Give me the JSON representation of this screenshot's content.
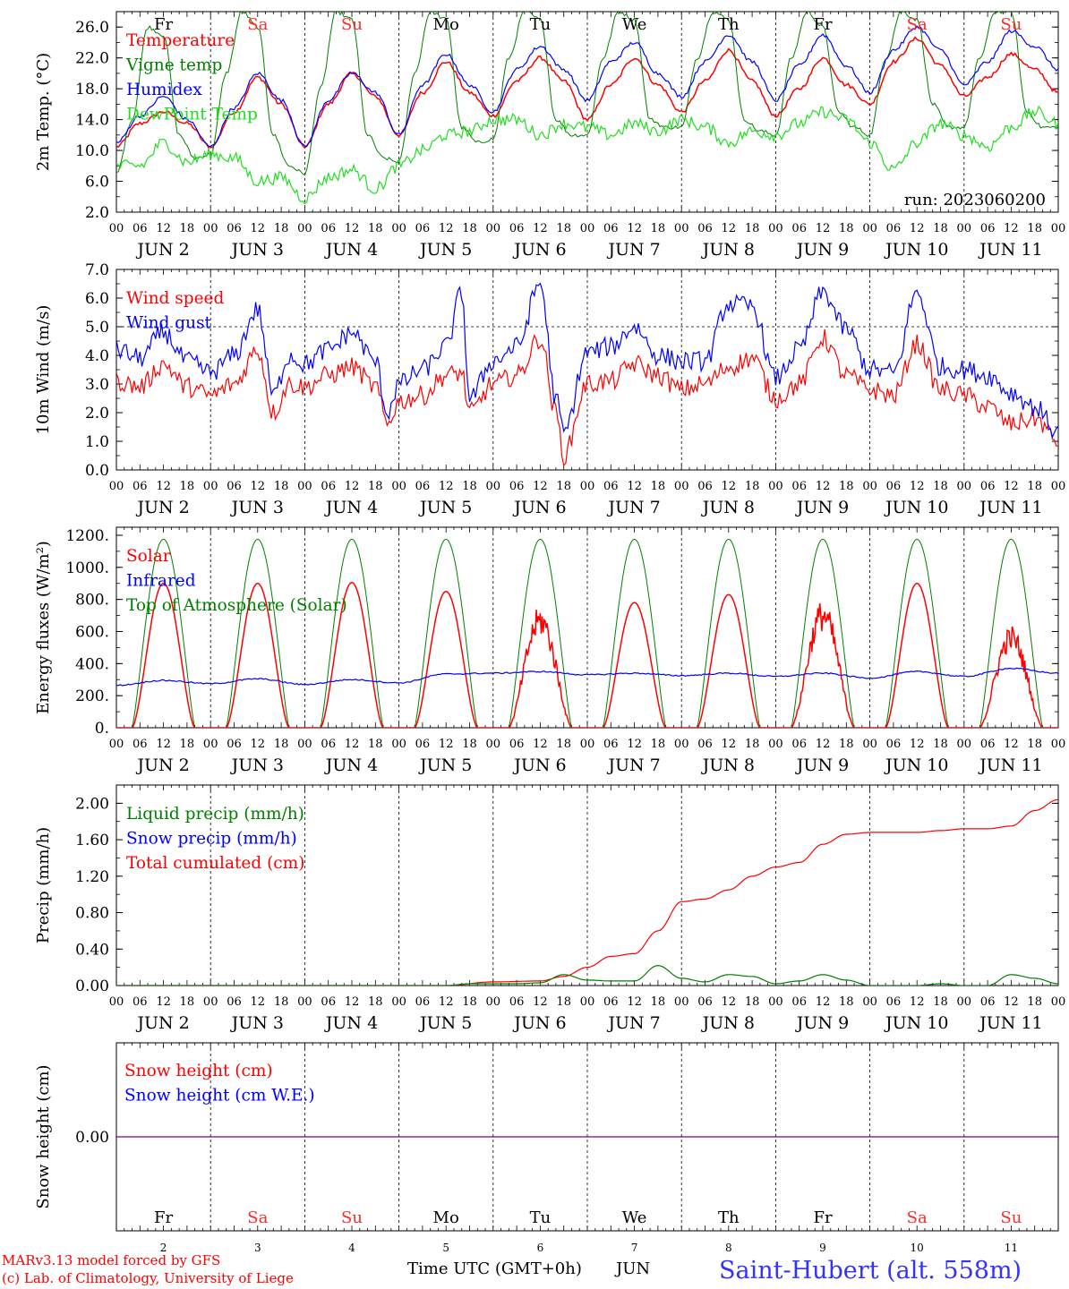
{
  "run_label": "run: 2023060200",
  "weekdays": [
    {
      "label": "Fr",
      "color": "#000000"
    },
    {
      "label": "Sa",
      "color": "#ff2a2a"
    },
    {
      "label": "Su",
      "color": "#ff2a2a"
    },
    {
      "label": "Mo",
      "color": "#000000"
    },
    {
      "label": "Tu",
      "color": "#000000"
    },
    {
      "label": "We",
      "color": "#000000"
    },
    {
      "label": "Th",
      "color": "#000000"
    },
    {
      "label": "Fr",
      "color": "#000000"
    },
    {
      "label": "Sa",
      "color": "#ff2a2a"
    },
    {
      "label": "Su",
      "color": "#ff2a2a"
    }
  ],
  "day_labels": [
    "JUN  2",
    "JUN  3",
    "JUN  4",
    "JUN  5",
    "JUN  6",
    "JUN  7",
    "JUN  8",
    "JUN  9",
    "JUN 10",
    "JUN 11"
  ],
  "hour_ticks": [
    "00",
    "06",
    "12",
    "18"
  ],
  "hour_tick_last": "00",
  "bottom_day_numbers": [
    "2",
    "3",
    "4",
    "5",
    "6",
    "7",
    "8",
    "9",
    "10",
    "11"
  ],
  "footer": {
    "model_line1": "MARv3.13 model forced by GFS",
    "model_line2": "(c) Lab. of Climatology, University of Liege",
    "time_label": "Time UTC (GMT+0h)",
    "month_label": "JUN",
    "station": "Saint-Hubert (alt. 558m)"
  },
  "colors": {
    "red": "#ff0000",
    "blue": "#0000ff",
    "green": "#008000",
    "lightgreen": "#22dd22",
    "purple": "#800080"
  },
  "chart_data": [
    {
      "type": "line",
      "ylabel": "2m Temp. (°C)",
      "ylim": [
        2,
        28
      ],
      "yticks": [
        "2.0",
        "6.0",
        "10.0",
        "14.0",
        "18.0",
        "22.0",
        "26.0"
      ],
      "ytick_values": [
        2,
        6,
        10,
        14,
        18,
        22,
        26
      ],
      "x_unit": "hours since Jun 2 00 UTC",
      "xlim": [
        0,
        240
      ],
      "legend": [
        {
          "name": "Temperature",
          "color": "#ff0000"
        },
        {
          "name": "Vigne temp",
          "color": "#008000"
        },
        {
          "name": "Humidex",
          "color": "#0000ff"
        },
        {
          "name": "DewPoint Temp",
          "color": "#22dd22"
        }
      ],
      "series": [
        {
          "name": "Temperature",
          "color": "#ff0000",
          "x": [
            0,
            6,
            12,
            18,
            24,
            30,
            36,
            42,
            48,
            54,
            60,
            66,
            72,
            78,
            84,
            90,
            96,
            102,
            108,
            114,
            120,
            126,
            132,
            138,
            144,
            150,
            156,
            162,
            168,
            174,
            180,
            186,
            192,
            198,
            204,
            210,
            216,
            222,
            228,
            234,
            240
          ],
          "y": [
            10.5,
            13.5,
            15.0,
            13.5,
            10.5,
            15.0,
            19.5,
            16.0,
            10.5,
            16.0,
            20.0,
            17.0,
            12.0,
            17.5,
            21.5,
            17.5,
            14.5,
            19.0,
            22.0,
            19.0,
            14.0,
            18.5,
            22.0,
            18.5,
            15.0,
            19.0,
            23.0,
            19.0,
            14.5,
            18.0,
            22.0,
            18.5,
            16.0,
            21.5,
            24.5,
            21.0,
            17.0,
            19.5,
            22.5,
            20.5,
            17.5
          ]
        },
        {
          "name": "Vigne temp",
          "color": "#008000",
          "x": [
            0,
            4,
            8,
            12,
            16,
            20,
            24,
            28,
            32,
            36,
            40,
            44,
            48,
            52,
            56,
            60,
            64,
            68,
            72,
            76,
            80,
            84,
            88,
            92,
            96,
            100,
            104,
            108,
            112,
            116,
            120,
            124,
            128,
            132,
            136,
            140,
            144,
            148,
            152,
            156,
            160,
            164,
            168,
            172,
            176,
            180,
            184,
            188,
            192,
            196,
            200,
            204,
            208,
            212,
            216,
            220,
            224,
            228,
            232,
            236,
            240
          ],
          "y": [
            7.0,
            14.0,
            26.0,
            25.0,
            12.0,
            9.0,
            9.5,
            20.0,
            28.0,
            26.0,
            12.0,
            8.0,
            7.0,
            18.0,
            28.0,
            27.0,
            12.0,
            9.0,
            8.5,
            20.0,
            28.0,
            27.0,
            13.0,
            11.0,
            11.5,
            22.0,
            28.0,
            27.0,
            14.0,
            12.0,
            12.0,
            22.0,
            28.0,
            27.0,
            14.0,
            13.0,
            13.0,
            22.0,
            28.0,
            27.0,
            14.0,
            12.5,
            12.0,
            22.0,
            28.0,
            26.0,
            15.0,
            13.0,
            12.0,
            22.0,
            28.0,
            27.0,
            16.0,
            13.0,
            13.0,
            22.0,
            28.0,
            28.0,
            15.0,
            13.0,
            13.0
          ]
        },
        {
          "name": "Humidex",
          "color": "#0000ff",
          "x": [
            0,
            6,
            12,
            18,
            24,
            30,
            36,
            42,
            48,
            54,
            60,
            66,
            72,
            78,
            84,
            90,
            96,
            102,
            108,
            114,
            120,
            126,
            132,
            138,
            144,
            150,
            156,
            162,
            168,
            174,
            180,
            186,
            192,
            198,
            204,
            210,
            216,
            222,
            228,
            234,
            240
          ],
          "y": [
            11.0,
            14.5,
            17.0,
            14.0,
            10.5,
            15.5,
            20.0,
            16.5,
            10.5,
            16.5,
            20.0,
            17.5,
            12.0,
            18.5,
            22.5,
            18.5,
            15.0,
            20.5,
            23.5,
            20.5,
            16.5,
            21.5,
            24.0,
            20.0,
            17.0,
            21.5,
            25.0,
            21.5,
            16.5,
            21.0,
            25.0,
            21.0,
            17.5,
            23.0,
            26.0,
            23.0,
            18.5,
            21.5,
            25.5,
            23.5,
            20.5
          ]
        },
        {
          "name": "DewPoint Temp",
          "color": "#22dd22",
          "x": [
            0,
            6,
            12,
            18,
            24,
            30,
            36,
            42,
            48,
            54,
            60,
            66,
            72,
            78,
            84,
            90,
            96,
            102,
            108,
            114,
            120,
            126,
            132,
            138,
            144,
            150,
            156,
            162,
            168,
            174,
            180,
            186,
            192,
            198,
            204,
            210,
            216,
            222,
            228,
            234,
            240
          ],
          "y": [
            8.0,
            8.0,
            11.0,
            8.5,
            9.5,
            9.0,
            6.0,
            6.5,
            3.8,
            6.5,
            7.5,
            5.0,
            8.0,
            10.0,
            12.0,
            12.5,
            14.0,
            14.0,
            12.0,
            13.5,
            13.0,
            12.0,
            13.5,
            12.5,
            14.0,
            13.0,
            11.0,
            12.5,
            12.0,
            13.5,
            15.0,
            14.0,
            11.0,
            7.5,
            11.0,
            13.5,
            12.0,
            10.5,
            13.0,
            15.0,
            13.5
          ]
        }
      ]
    },
    {
      "type": "line",
      "ylabel": "10m Wind (m/s)",
      "ylim": [
        0,
        7
      ],
      "yticks": [
        "0.0",
        "1.0",
        "2.0",
        "3.0",
        "4.0",
        "5.0",
        "6.0",
        "7.0"
      ],
      "ytick_values": [
        0,
        1,
        2,
        3,
        4,
        5,
        6,
        7
      ],
      "reference_line": 5.0,
      "xlim": [
        0,
        240
      ],
      "legend": [
        {
          "name": "Wind speed",
          "color": "#ff0000"
        },
        {
          "name": "Wind gust",
          "color": "#0000ff"
        }
      ],
      "series": [
        {
          "name": "Wind speed",
          "color": "#ff0000",
          "x": [
            0,
            6,
            12,
            18,
            24,
            30,
            36,
            40,
            44,
            48,
            54,
            60,
            66,
            69,
            72,
            78,
            84,
            88,
            90,
            96,
            102,
            108,
            112,
            114,
            120,
            126,
            132,
            138,
            144,
            150,
            156,
            162,
            168,
            174,
            180,
            186,
            192,
            198,
            204,
            210,
            216,
            222,
            228,
            234,
            240
          ],
          "y": [
            3.1,
            2.9,
            3.7,
            2.9,
            2.6,
            3.0,
            4.2,
            2.0,
            3.0,
            2.9,
            3.3,
            3.6,
            2.9,
            1.6,
            2.4,
            2.6,
            3.3,
            3.4,
            2.0,
            3.0,
            3.3,
            4.6,
            2.0,
            0.5,
            3.0,
            3.1,
            3.7,
            3.3,
            2.8,
            3.0,
            3.6,
            3.9,
            2.5,
            3.0,
            4.6,
            3.3,
            2.8,
            2.6,
            4.4,
            2.8,
            2.6,
            2.2,
            1.6,
            1.8,
            1.0
          ]
        },
        {
          "name": "Wind gust",
          "color": "#0000ff",
          "x": [
            0,
            6,
            12,
            18,
            24,
            30,
            36,
            40,
            44,
            48,
            54,
            60,
            66,
            69,
            72,
            78,
            84,
            88,
            90,
            96,
            102,
            108,
            112,
            114,
            120,
            126,
            132,
            138,
            144,
            150,
            156,
            162,
            168,
            174,
            180,
            186,
            192,
            198,
            204,
            210,
            216,
            222,
            228,
            234,
            240
          ],
          "y": [
            4.2,
            3.9,
            4.8,
            3.8,
            3.4,
            4.0,
            5.6,
            2.6,
            4.0,
            3.7,
            4.2,
            4.8,
            3.8,
            2.0,
            3.0,
            3.5,
            4.3,
            6.2,
            2.5,
            3.8,
            4.3,
            6.5,
            2.5,
            1.3,
            4.1,
            4.3,
            5.0,
            4.0,
            3.8,
            3.8,
            5.8,
            5.7,
            3.2,
            4.2,
            6.2,
            4.9,
            3.5,
            3.4,
            6.2,
            3.6,
            3.5,
            3.3,
            2.7,
            2.2,
            1.3
          ]
        }
      ]
    },
    {
      "type": "line",
      "ylabel": "Energy fluxes (W/m²)",
      "ylim": [
        0,
        1250
      ],
      "yticks": [
        "0.",
        "200.",
        "400.",
        "600.",
        "800.",
        "1000.",
        "1200."
      ],
      "ytick_values": [
        0,
        200,
        400,
        600,
        800,
        1000,
        1200
      ],
      "xlim": [
        0,
        240
      ],
      "legend": [
        {
          "name": "Solar",
          "color": "#ff0000"
        },
        {
          "name": "Infrared",
          "color": "#0000ff"
        },
        {
          "name": "Top of Atmosphere (Solar)",
          "color": "#008000"
        }
      ],
      "daily_peaks": {
        "top_of_atmosphere": [
          1175,
          1175,
          1175,
          1175,
          1175,
          1175,
          1175,
          1175,
          1175,
          1175
        ],
        "solar": [
          900,
          900,
          905,
          850,
          760,
          780,
          830,
          800,
          900,
          640
        ]
      },
      "series": [
        {
          "name": "Infrared",
          "color": "#0000ff",
          "x": [
            0,
            12,
            24,
            36,
            48,
            60,
            72,
            84,
            96,
            108,
            120,
            132,
            144,
            156,
            168,
            180,
            192,
            204,
            216,
            228,
            240
          ],
          "y": [
            265,
            295,
            275,
            305,
            270,
            300,
            280,
            335,
            340,
            350,
            330,
            340,
            325,
            340,
            320,
            340,
            310,
            350,
            320,
            370,
            340
          ]
        }
      ]
    },
    {
      "type": "line",
      "ylabel": "Precip (mm/h)",
      "ylim": [
        0,
        2.2
      ],
      "yticks": [
        "0.00",
        "0.40",
        "0.80",
        "1.20",
        "1.60",
        "2.00"
      ],
      "ytick_values": [
        0,
        0.4,
        0.8,
        1.2,
        1.6,
        2.0
      ],
      "xlim": [
        0,
        240
      ],
      "legend": [
        {
          "name": "Liquid precip (mm/h)",
          "color": "#008000"
        },
        {
          "name": "Snow precip (mm/h)",
          "color": "#0000ff"
        },
        {
          "name": "Total cumulated (cm)",
          "color": "#ff0000"
        }
      ],
      "series": [
        {
          "name": "Total cumulated (cm)",
          "color": "#ff0000",
          "x": [
            0,
            84,
            96,
            108,
            114,
            120,
            126,
            132,
            138,
            144,
            150,
            156,
            162,
            168,
            174,
            180,
            186,
            192,
            198,
            204,
            210,
            216,
            222,
            228,
            234,
            240
          ],
          "y": [
            0,
            0,
            0.04,
            0.05,
            0.1,
            0.2,
            0.32,
            0.35,
            0.6,
            0.92,
            0.95,
            1.05,
            1.2,
            1.3,
            1.35,
            1.55,
            1.66,
            1.68,
            1.68,
            1.68,
            1.7,
            1.72,
            1.72,
            1.75,
            1.92,
            2.04
          ]
        },
        {
          "name": "Liquid precip (mm/h)",
          "color": "#008000",
          "x": [
            0,
            84,
            90,
            96,
            102,
            108,
            114,
            120,
            126,
            132,
            138,
            144,
            150,
            156,
            162,
            168,
            174,
            180,
            186,
            192,
            198,
            204,
            210,
            216,
            222,
            228,
            234,
            240
          ],
          "y": [
            0,
            0,
            0.02,
            0.02,
            0.02,
            0.03,
            0.12,
            0.06,
            0.05,
            0.05,
            0.22,
            0.08,
            0.04,
            0.12,
            0.1,
            0.02,
            0.05,
            0.12,
            0.06,
            0.0,
            0.0,
            0.0,
            0.02,
            0.0,
            0.0,
            0.12,
            0.08,
            0.02
          ]
        }
      ]
    },
    {
      "type": "line",
      "ylabel": "Snow height (cm)",
      "ylim": [
        -1,
        1
      ],
      "yticks": [
        "0.00"
      ],
      "ytick_values": [
        0
      ],
      "xlim": [
        0,
        240
      ],
      "legend": [
        {
          "name": "Snow height (cm)",
          "color": "#ff0000"
        },
        {
          "name": "Snow height (cm W.E.)",
          "color": "#0000ff"
        }
      ],
      "series": [
        {
          "name": "Snow height (cm)",
          "color": "#800080",
          "x": [
            0,
            240
          ],
          "y": [
            0,
            0
          ]
        }
      ]
    }
  ]
}
